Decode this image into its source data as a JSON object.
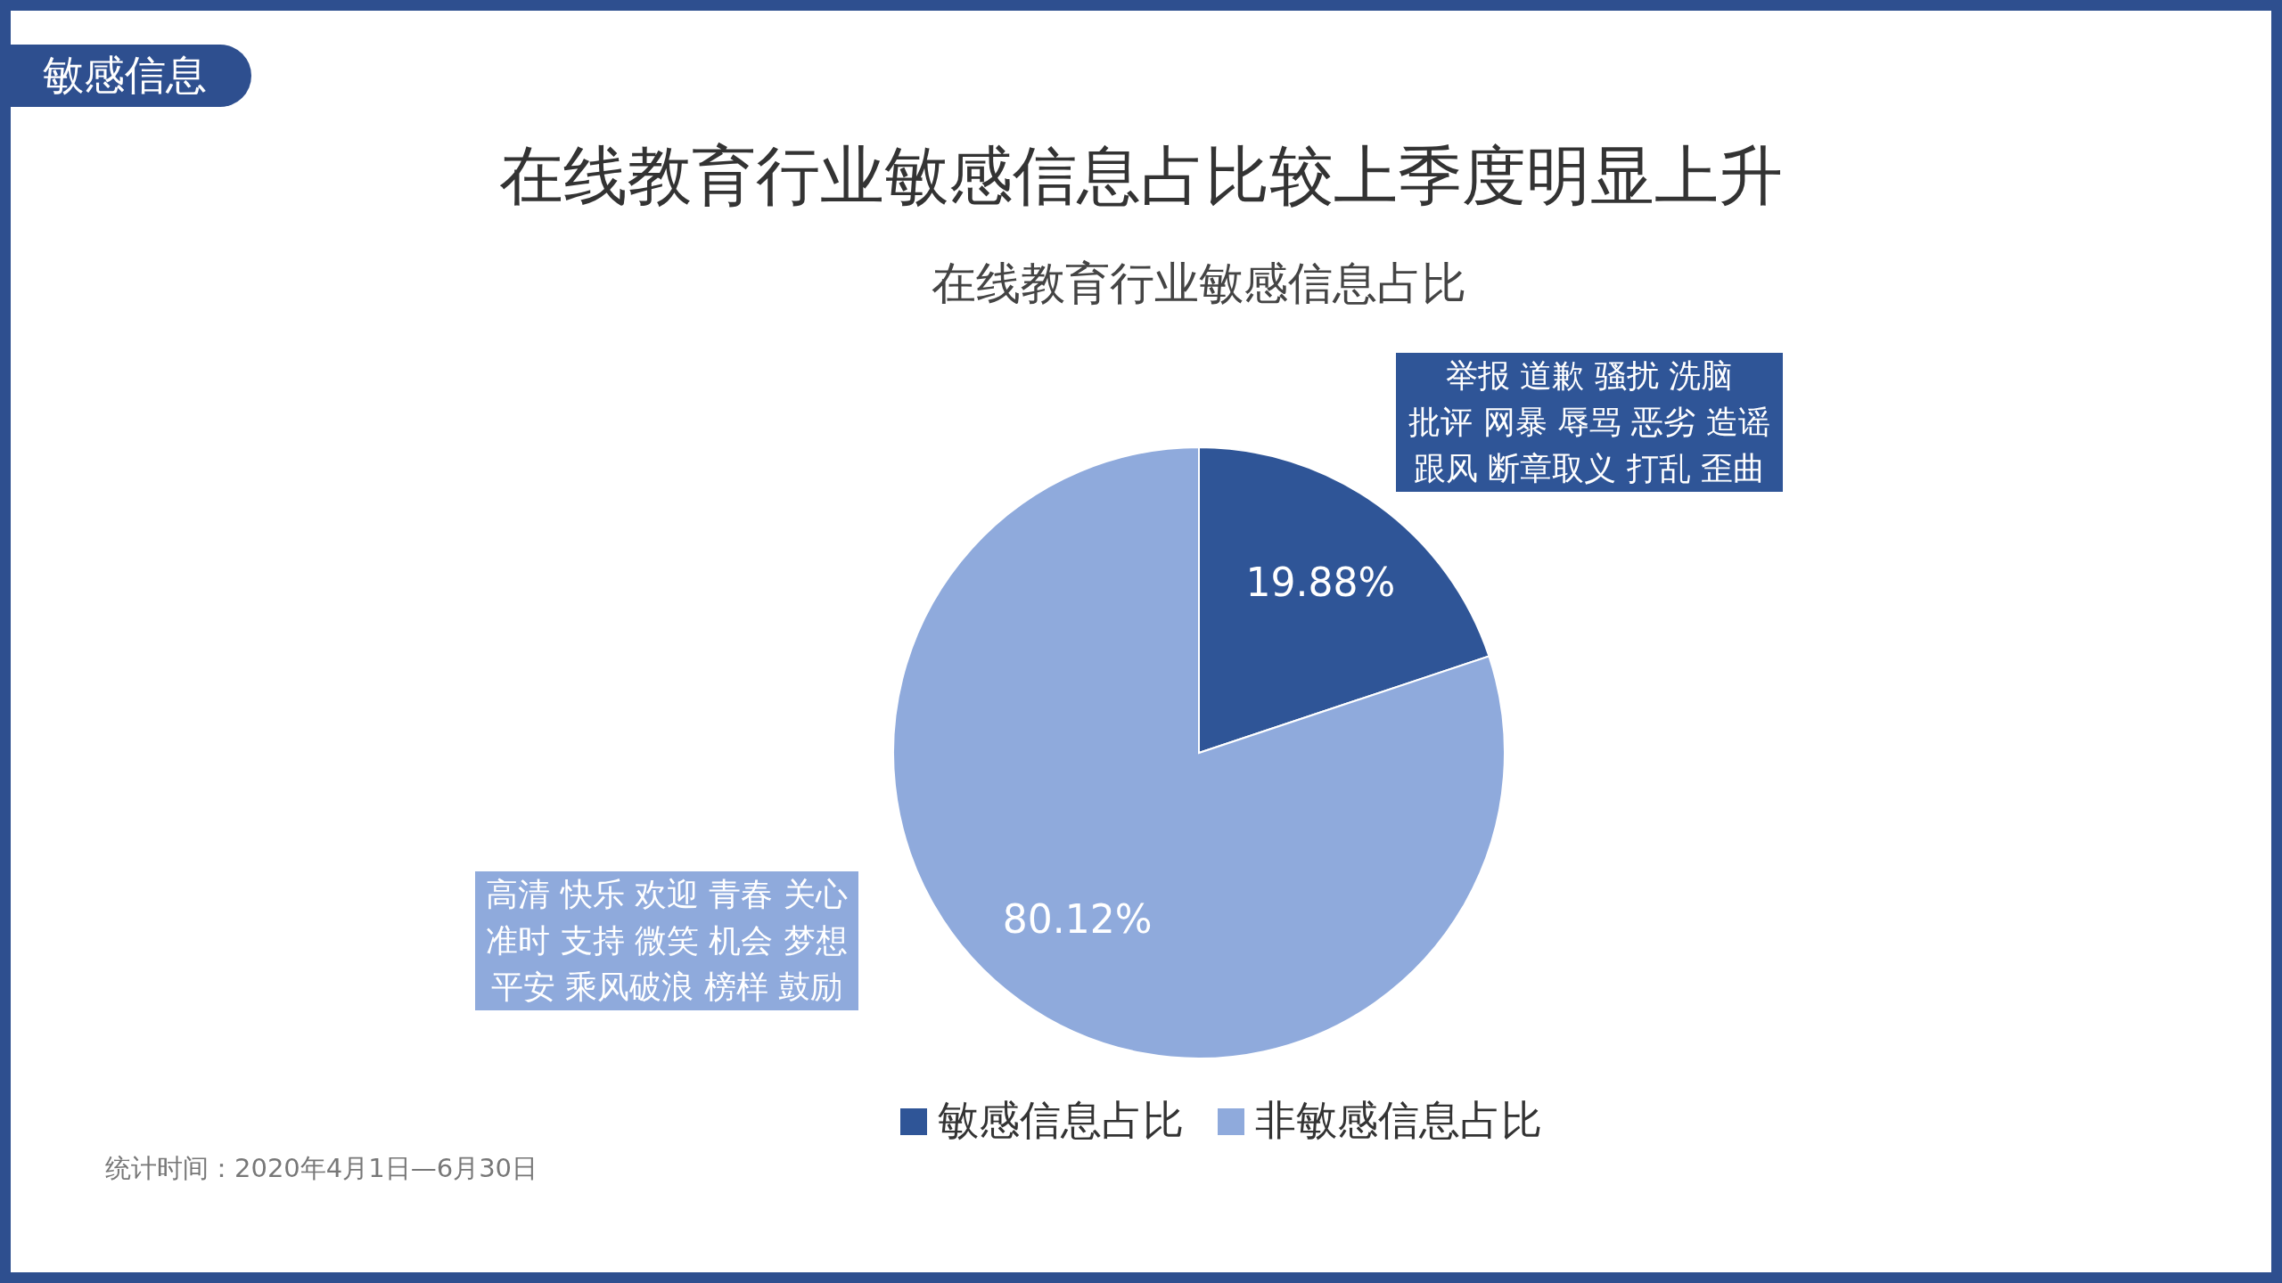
{
  "chart_data": {
    "type": "pie",
    "title": "在线教育行业敏感信息占比较上季度明显上升",
    "subtitle": "在线教育行业敏感信息占比",
    "categories": [
      "敏感信息占比",
      "非敏感信息占比"
    ],
    "values": [
      19.88,
      80.12
    ],
    "colors": [
      "#2f5597",
      "#8faadc"
    ],
    "value_labels": [
      "19.88%",
      "80.12%"
    ],
    "legend": "bottom",
    "annotations": [
      "敏感信息",
      "举报 道歉 骚扰 洗脑",
      "批评 网暴 辱骂 恶劣 造谣",
      "跟风 断章取义 打乱 歪曲",
      "高清 快乐 欢迎 青春 关心",
      "准时 支持 微笑 机会 梦想",
      "平安 乘风破浪 榜样 鼓励",
      "统计时间：2020年4月1日—6月30日"
    ]
  }
}
